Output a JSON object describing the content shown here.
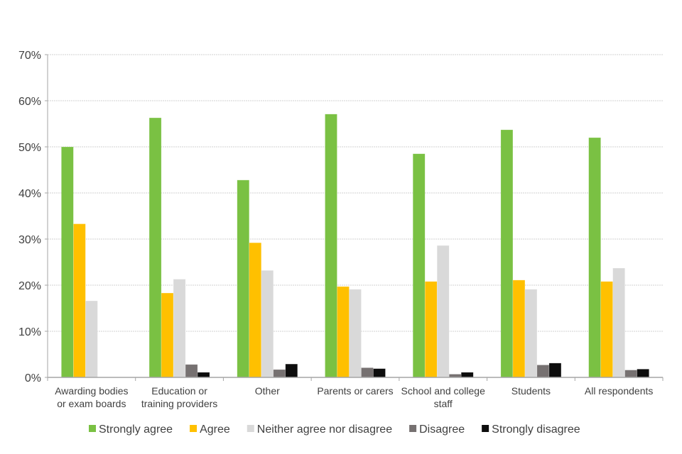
{
  "chart_data": {
    "type": "bar",
    "title": "",
    "xlabel": "",
    "ylabel": "",
    "ylim": [
      0,
      70
    ],
    "yticks": [
      "0%",
      "10%",
      "20%",
      "30%",
      "40%",
      "50%",
      "60%",
      "70%"
    ],
    "grid": true,
    "legend_position": "bottom",
    "categories": [
      [
        "Awarding bodies",
        "or exam boards"
      ],
      [
        "Education or",
        "training providers"
      ],
      [
        "Other"
      ],
      [
        "Parents or carers"
      ],
      [
        "School and college",
        "staff"
      ],
      [
        "Students"
      ],
      [
        "All respondents"
      ]
    ],
    "series": [
      {
        "name": "Strongly agree",
        "color": "#7AC143",
        "values": [
          50.0,
          56.3,
          42.8,
          57.1,
          48.5,
          53.7,
          52.0
        ]
      },
      {
        "name": "Agree",
        "color": "#FFC000",
        "values": [
          33.3,
          18.3,
          29.2,
          19.7,
          20.8,
          21.1,
          20.8
        ]
      },
      {
        "name": "Neither agree nor disagree",
        "color": "#D9D9D9",
        "values": [
          16.6,
          21.3,
          23.2,
          19.1,
          28.6,
          19.1,
          23.7
        ]
      },
      {
        "name": "Disagree",
        "color": "#767171",
        "values": [
          0,
          2.8,
          1.7,
          2.1,
          0.7,
          2.7,
          1.6
        ]
      },
      {
        "name": "Strongly disagree",
        "color": "#0D0D0D",
        "values": [
          0,
          1.1,
          2.9,
          1.9,
          1.1,
          3.1,
          1.8
        ]
      }
    ]
  }
}
